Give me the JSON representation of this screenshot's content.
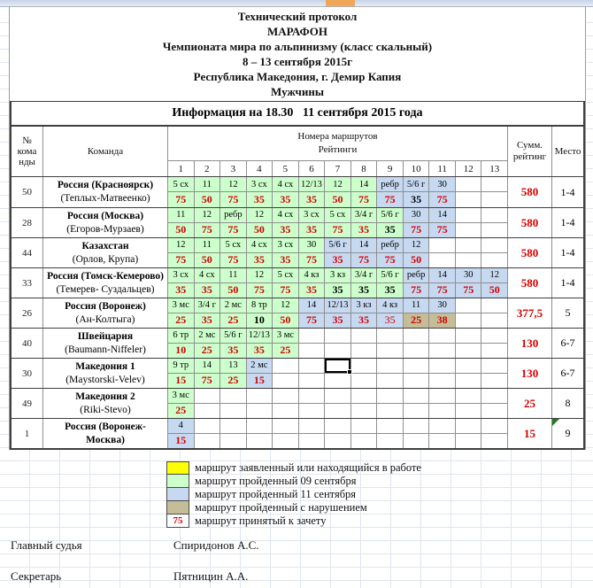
{
  "colors": {
    "green": "#ccffcc",
    "blue": "#c6d9f1",
    "tan": "#c4bd97",
    "yellow": "#ffff00",
    "red": "#d40000"
  },
  "title": {
    "lines": [
      "Технический протокол",
      "МАРАФОН",
      "Чемпионата мира по альпинизму (класс скальный)",
      "8 – 13 сентября 2015г",
      "Республика Македония, г. Демир Капия",
      "Мужчины"
    ]
  },
  "info_bar": {
    "text": "Информация на 18.30   11 сентября 2015 года"
  },
  "table": {
    "header": {
      "num_lines": [
        "№",
        "кома",
        "нды"
      ],
      "team": "Команда",
      "routes_title": "Номера маршрутов",
      "ratings_title": "Рейтинги",
      "col_numbers": [
        "1",
        "2",
        "3",
        "4",
        "5",
        "6",
        "7",
        "8",
        "9",
        "10",
        "11",
        "12",
        "13"
      ],
      "sum_lines": [
        "Сумм.",
        "рейтинг"
      ],
      "place": "Место"
    },
    "teams": [
      {
        "id": "50",
        "name_lines": [
          "Россия (Красноярск)"
        ],
        "members": "(Теплых-Матвеенко)",
        "sum": "580",
        "place": "1-4",
        "cells": [
          {
            "c": 1,
            "t": "5 сх",
            "v": "75",
            "tb": "g",
            "vb": "g",
            "vc": "red"
          },
          {
            "c": 2,
            "t": "11",
            "v": "50",
            "tb": "g",
            "vb": "g",
            "vc": "red"
          },
          {
            "c": 3,
            "t": "12",
            "v": "75",
            "tb": "g",
            "vb": "g",
            "vc": "red"
          },
          {
            "c": 4,
            "t": "3 сх",
            "v": "35",
            "tb": "g",
            "vb": "g",
            "vc": "red"
          },
          {
            "c": 5,
            "t": "4 сх",
            "v": "35",
            "tb": "g",
            "vb": "g",
            "vc": "red"
          },
          {
            "c": 6,
            "t": "12/13",
            "v": "35",
            "tb": "g",
            "vb": "g",
            "vc": "red"
          },
          {
            "c": 7,
            "t": "12",
            "v": "50",
            "tb": "g",
            "vb": "g",
            "vc": "red"
          },
          {
            "c": 8,
            "t": "14",
            "v": "75",
            "tb": "g",
            "vb": "g",
            "vc": "red"
          },
          {
            "c": 9,
            "t": "ребр",
            "v": "75",
            "tb": "b",
            "vb": "b",
            "vc": "red"
          },
          {
            "c": 10,
            "t": "5/6 г",
            "v": "35",
            "tb": "b",
            "vb": "b",
            "vc": "black"
          },
          {
            "c": 11,
            "t": "30",
            "v": "75",
            "tb": "b",
            "vb": "b",
            "vc": "red"
          }
        ]
      },
      {
        "id": "28",
        "name_lines": [
          "Россия (Москва)"
        ],
        "members": "(Егоров-Мурзаев)",
        "sum": "580",
        "place": "1-4",
        "cells": [
          {
            "c": 1,
            "t": "11",
            "v": "50",
            "tb": "g",
            "vb": "g",
            "vc": "red"
          },
          {
            "c": 2,
            "t": "12",
            "v": "75",
            "tb": "g",
            "vb": "g",
            "vc": "red"
          },
          {
            "c": 3,
            "t": "ребр",
            "v": "75",
            "tb": "g",
            "vb": "g",
            "vc": "red"
          },
          {
            "c": 4,
            "t": "12",
            "v": "50",
            "tb": "g",
            "vb": "g",
            "vc": "red"
          },
          {
            "c": 5,
            "t": "4 сх",
            "v": "35",
            "tb": "g",
            "vb": "g",
            "vc": "red"
          },
          {
            "c": 6,
            "t": "3 сх",
            "v": "35",
            "tb": "g",
            "vb": "g",
            "vc": "red"
          },
          {
            "c": 7,
            "t": "5 сх",
            "v": "75",
            "tb": "g",
            "vb": "g",
            "vc": "red"
          },
          {
            "c": 8,
            "t": "3/4 г",
            "v": "35",
            "tb": "g",
            "vb": "g",
            "vc": "red"
          },
          {
            "c": 9,
            "t": "5/6 г",
            "v": "35",
            "tb": "g",
            "vb": "g",
            "vc": "black"
          },
          {
            "c": 10,
            "t": "30",
            "v": "75",
            "tb": "b",
            "vb": "b",
            "vc": "red"
          },
          {
            "c": 11,
            "t": "14",
            "v": "75",
            "tb": "b",
            "vb": "b",
            "vc": "red"
          }
        ]
      },
      {
        "id": "44",
        "name_lines": [
          "Казахстан"
        ],
        "members": "(Орлов, Крупа)",
        "sum": "580",
        "place": "1-4",
        "cells": [
          {
            "c": 1,
            "t": "12",
            "v": "75",
            "tb": "g",
            "vb": "g",
            "vc": "red"
          },
          {
            "c": 2,
            "t": "11",
            "v": "50",
            "tb": "g",
            "vb": "g",
            "vc": "red"
          },
          {
            "c": 3,
            "t": "5 сх",
            "v": "75",
            "tb": "g",
            "vb": "g",
            "vc": "red"
          },
          {
            "c": 4,
            "t": "4 сх",
            "v": "35",
            "tb": "g",
            "vb": "g",
            "vc": "red"
          },
          {
            "c": 5,
            "t": "3 сх",
            "v": "35",
            "tb": "g",
            "vb": "g",
            "vc": "red"
          },
          {
            "c": 6,
            "t": "30",
            "v": "75",
            "tb": "g",
            "vb": "g",
            "vc": "red"
          },
          {
            "c": 7,
            "t": "5/6 г",
            "v": "35",
            "tb": "b",
            "vb": "b",
            "vc": "red"
          },
          {
            "c": 8,
            "t": "14",
            "v": "75",
            "tb": "b",
            "vb": "b",
            "vc": "red"
          },
          {
            "c": 9,
            "t": "ребр",
            "v": "75",
            "tb": "b",
            "vb": "b",
            "vc": "red"
          },
          {
            "c": 10,
            "t": "12",
            "v": "50",
            "tb": "b",
            "vb": "b",
            "vc": "red"
          }
        ]
      },
      {
        "id": "33",
        "name_lines": [
          "Россия (Томск-Кемерово)"
        ],
        "members": "(Темерев- Суздальцев)",
        "sum": "580",
        "place": "1-4",
        "cells": [
          {
            "c": 1,
            "t": "3 сх",
            "v": "35",
            "tb": "g",
            "vb": "g",
            "vc": "red"
          },
          {
            "c": 2,
            "t": "4 сх",
            "v": "35",
            "tb": "g",
            "vb": "g",
            "vc": "red"
          },
          {
            "c": 3,
            "t": "11",
            "v": "50",
            "tb": "g",
            "vb": "g",
            "vc": "red"
          },
          {
            "c": 4,
            "t": "12",
            "v": "75",
            "tb": "g",
            "vb": "g",
            "vc": "red"
          },
          {
            "c": 5,
            "t": "5 сх",
            "v": "75",
            "tb": "g",
            "vb": "g",
            "vc": "red"
          },
          {
            "c": 6,
            "t": "4 кз",
            "v": "35",
            "tb": "g",
            "vb": "g",
            "vc": "red"
          },
          {
            "c": 7,
            "t": "3 кз",
            "v": "35",
            "tb": "g",
            "vb": "g",
            "vc": "black"
          },
          {
            "c": 8,
            "t": "3/4 г",
            "v": "35",
            "tb": "g",
            "vb": "g",
            "vc": "black"
          },
          {
            "c": 9,
            "t": "5/6 г",
            "v": "35",
            "tb": "g",
            "vb": "g",
            "vc": "black"
          },
          {
            "c": 10,
            "t": "ребр",
            "v": "75",
            "tb": "b",
            "vb": "b",
            "vc": "red"
          },
          {
            "c": 11,
            "t": "14",
            "v": "75",
            "tb": "b",
            "vb": "b",
            "vc": "red"
          },
          {
            "c": 12,
            "t": "30",
            "v": "75",
            "tb": "b",
            "vb": "b",
            "vc": "red"
          },
          {
            "c": 13,
            "t": "12",
            "v": "50",
            "tb": "b",
            "vb": "b",
            "vc": "red"
          }
        ]
      },
      {
        "id": "26",
        "name_lines": [
          "Россия (Воронеж)"
        ],
        "members": "(Ан-Колтыга)",
        "sum": "377,5",
        "place": "5",
        "cells": [
          {
            "c": 1,
            "t": "3 мс",
            "v": "25",
            "tb": "g",
            "vb": "g",
            "vc": "red"
          },
          {
            "c": 2,
            "t": "3/4 г",
            "v": "35",
            "tb": "g",
            "vb": "g",
            "vc": "red"
          },
          {
            "c": 3,
            "t": "2 мс",
            "v": "25",
            "tb": "g",
            "vb": "g",
            "vc": "red"
          },
          {
            "c": 4,
            "t": "8 тр",
            "v": "10",
            "tb": "g",
            "vb": "g",
            "vc": "black"
          },
          {
            "c": 5,
            "t": "12",
            "v": "50",
            "tb": "g",
            "vb": "g",
            "vc": "red"
          },
          {
            "c": 6,
            "t": "14",
            "v": "75",
            "tb": "b",
            "vb": "b",
            "vc": "red"
          },
          {
            "c": 7,
            "t": "12/13",
            "v": "35",
            "tb": "b",
            "vb": "b",
            "vc": "red"
          },
          {
            "c": 8,
            "t": "3 кз",
            "v": "35",
            "tb": "b",
            "vb": "b",
            "vc": "red"
          },
          {
            "c": 9,
            "t": "4 кз",
            "v": "35",
            "tb": "b",
            "vb": "b",
            "vc": "redl"
          },
          {
            "c": 10,
            "t": "11",
            "v": "25",
            "tb": "b",
            "vb": "t",
            "vc": "red"
          },
          {
            "c": 11,
            "t": "30",
            "v": "38",
            "tb": "b",
            "vb": "t",
            "vc": "red"
          }
        ]
      },
      {
        "id": "40",
        "name_lines": [
          "Швейцария"
        ],
        "members": "(Baumann-Niffeler)",
        "sum": "130",
        "place": "6-7",
        "cells": [
          {
            "c": 1,
            "t": "6 тр",
            "v": "10",
            "tb": "g",
            "vb": "g",
            "vc": "red"
          },
          {
            "c": 2,
            "t": "2 мс",
            "v": "25",
            "tb": "g",
            "vb": "g",
            "vc": "red"
          },
          {
            "c": 3,
            "t": "5/6 г",
            "v": "35",
            "tb": "g",
            "vb": "g",
            "vc": "red"
          },
          {
            "c": 4,
            "t": "12/13",
            "v": "35",
            "tb": "g",
            "vb": "g",
            "vc": "red"
          },
          {
            "c": 5,
            "t": "3 мс",
            "v": "25",
            "tb": "g",
            "vb": "g",
            "vc": "red"
          }
        ]
      },
      {
        "id": "30",
        "name_lines": [
          "Македония 1"
        ],
        "members": "(Maystorski-Velev)",
        "sum": "130",
        "place": "6-7",
        "sel_col": 7,
        "cells": [
          {
            "c": 1,
            "t": "9 тр",
            "v": "15",
            "tb": "g",
            "vb": "g",
            "vc": "red"
          },
          {
            "c": 2,
            "t": "14",
            "v": "75",
            "tb": "g",
            "vb": "g",
            "vc": "red"
          },
          {
            "c": 3,
            "t": "13",
            "v": "25",
            "tb": "g",
            "vb": "g",
            "vc": "red"
          },
          {
            "c": 4,
            "t": "2 мс",
            "v": "15",
            "tb": "b",
            "vb": "b",
            "vc": "red"
          }
        ]
      },
      {
        "id": "49",
        "name_lines": [
          "Македония 2"
        ],
        "members": "(Riki-Stevo)",
        "sum": "25",
        "place": "8",
        "cells": [
          {
            "c": 1,
            "t": "3 мс",
            "v": "25",
            "tb": "g",
            "vb": "g",
            "vc": "red"
          }
        ]
      },
      {
        "id": "1",
        "name_lines": [
          "Россия (Воронеж-",
          "Москва)"
        ],
        "members": null,
        "sum": "15",
        "place": "9",
        "corner": true,
        "cells": [
          {
            "c": 1,
            "t": "4",
            "v": "15",
            "tb": "b",
            "vb": "b",
            "vc": "red"
          }
        ]
      }
    ]
  },
  "legend": {
    "items": [
      {
        "swatch": "yellow",
        "label": "маршрут заявленный или находящийся в работе"
      },
      {
        "swatch": "green",
        "label": "маршрут пройденный 09 сентября"
      },
      {
        "swatch": "blue",
        "label": "маршрут пройденный 11 сентября"
      },
      {
        "swatch": "tan",
        "label": "маршрут пройденный с нарушением"
      },
      {
        "swatch": "value",
        "value": "75",
        "label": "маршрут принятый к зачету"
      }
    ]
  },
  "signatures": [
    {
      "role": "Главный судья",
      "name": "Спиридонов А.С."
    },
    {
      "role": "Секретарь",
      "name": "Пятницин А.А."
    }
  ]
}
